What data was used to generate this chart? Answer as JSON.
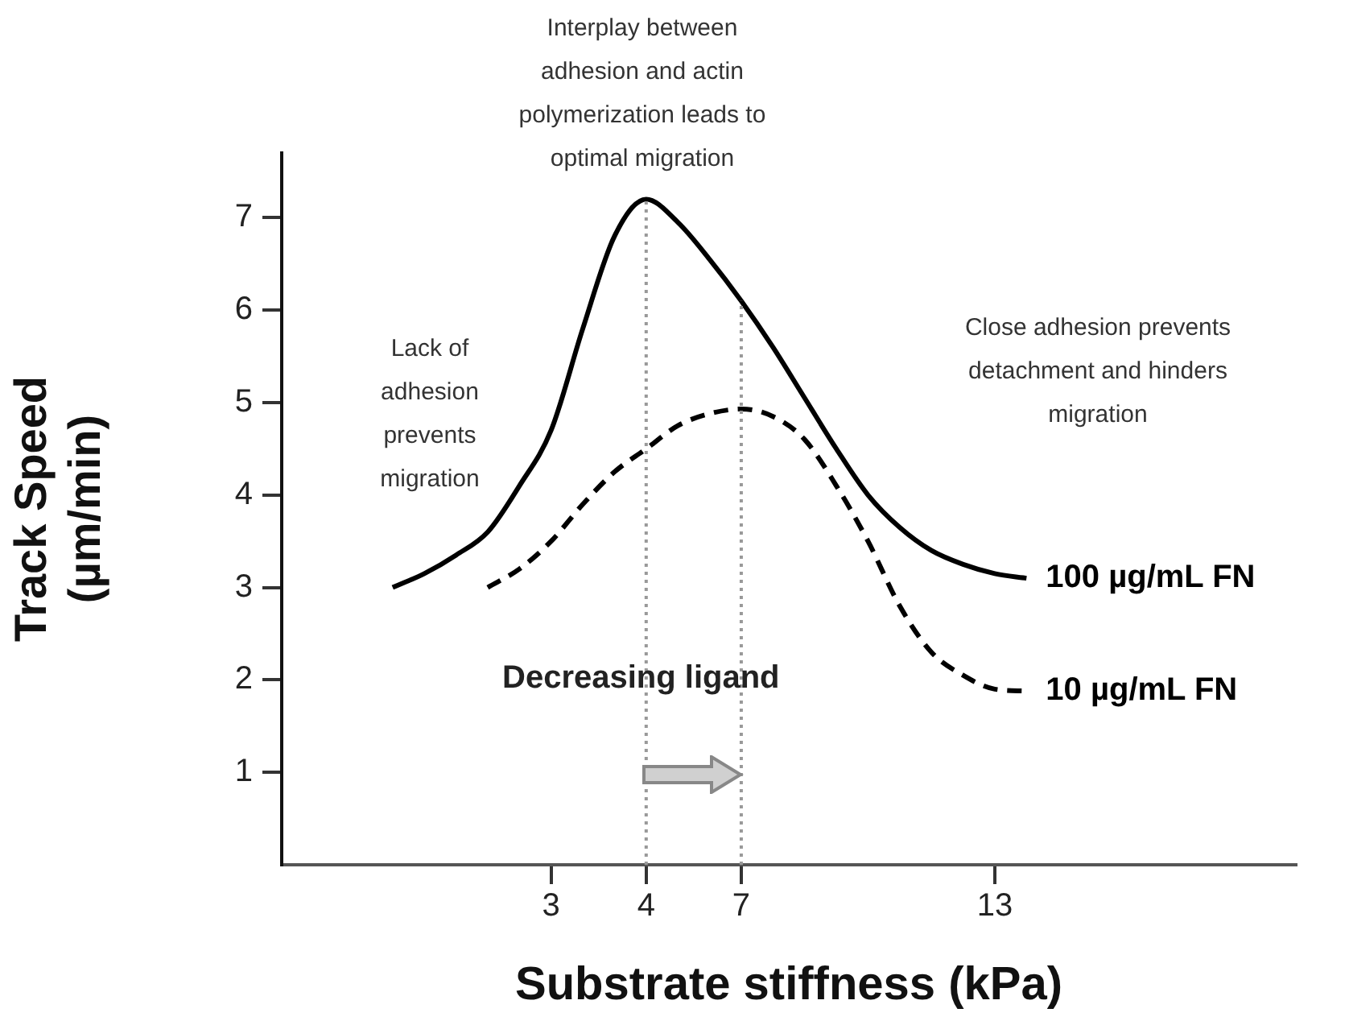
{
  "chart_data": {
    "type": "line",
    "xlabel": "Substrate stiffness (kPa)",
    "ylabel": "Track Speed (µm/min)",
    "categories": [
      null,
      null,
      null,
      null,
      null,
      null,
      null,
      null,
      "3",
      null,
      null,
      "4",
      null,
      null,
      "7",
      null,
      null,
      null,
      null,
      null,
      null,
      null,
      "13",
      null,
      null,
      null,
      null,
      null,
      null,
      null,
      null,
      null
    ],
    "series": [
      {
        "name": "100 µg/mL FN",
        "color": "#000000",
        "line_style": "solid",
        "values": [
          null,
          null,
          null,
          3.0,
          3.15,
          3.35,
          3.6,
          4.1,
          4.7,
          5.8,
          6.8,
          7.2,
          6.95,
          6.55,
          6.1,
          5.6,
          5.05,
          4.5,
          4.0,
          3.65,
          3.4,
          3.25,
          3.15,
          3.1,
          null,
          null,
          null,
          null,
          null,
          null,
          null,
          null
        ]
      },
      {
        "name": "10 µg/mL FN",
        "color": "#000000",
        "line_style": "dashed",
        "values": [
          null,
          null,
          null,
          null,
          null,
          null,
          3.0,
          3.2,
          3.5,
          3.9,
          4.25,
          4.5,
          4.75,
          4.88,
          4.93,
          4.85,
          4.6,
          4.1,
          3.5,
          2.8,
          2.3,
          2.05,
          1.9,
          1.88,
          null,
          null,
          null,
          null,
          null,
          null,
          null,
          null
        ]
      }
    ],
    "ylim": [
      0,
      7.7
    ],
    "yticks": [
      1,
      2,
      3,
      4,
      5,
      6,
      7
    ],
    "grid": false,
    "legend": false,
    "marker": "none",
    "ref_lines": [
      {
        "axis": "x",
        "value": "4",
        "color": "#999999",
        "line_style": "dotted"
      },
      {
        "axis": "x",
        "value": "7",
        "color": "#999999",
        "line_style": "dotted"
      }
    ],
    "annotations": [
      "Interplay between adhesion and actin polymerization leads to optimal migration",
      "Lack of adhesion prevents migration",
      "Close adhesion prevents detachment and hinders migration",
      "Decreasing ligand"
    ]
  }
}
